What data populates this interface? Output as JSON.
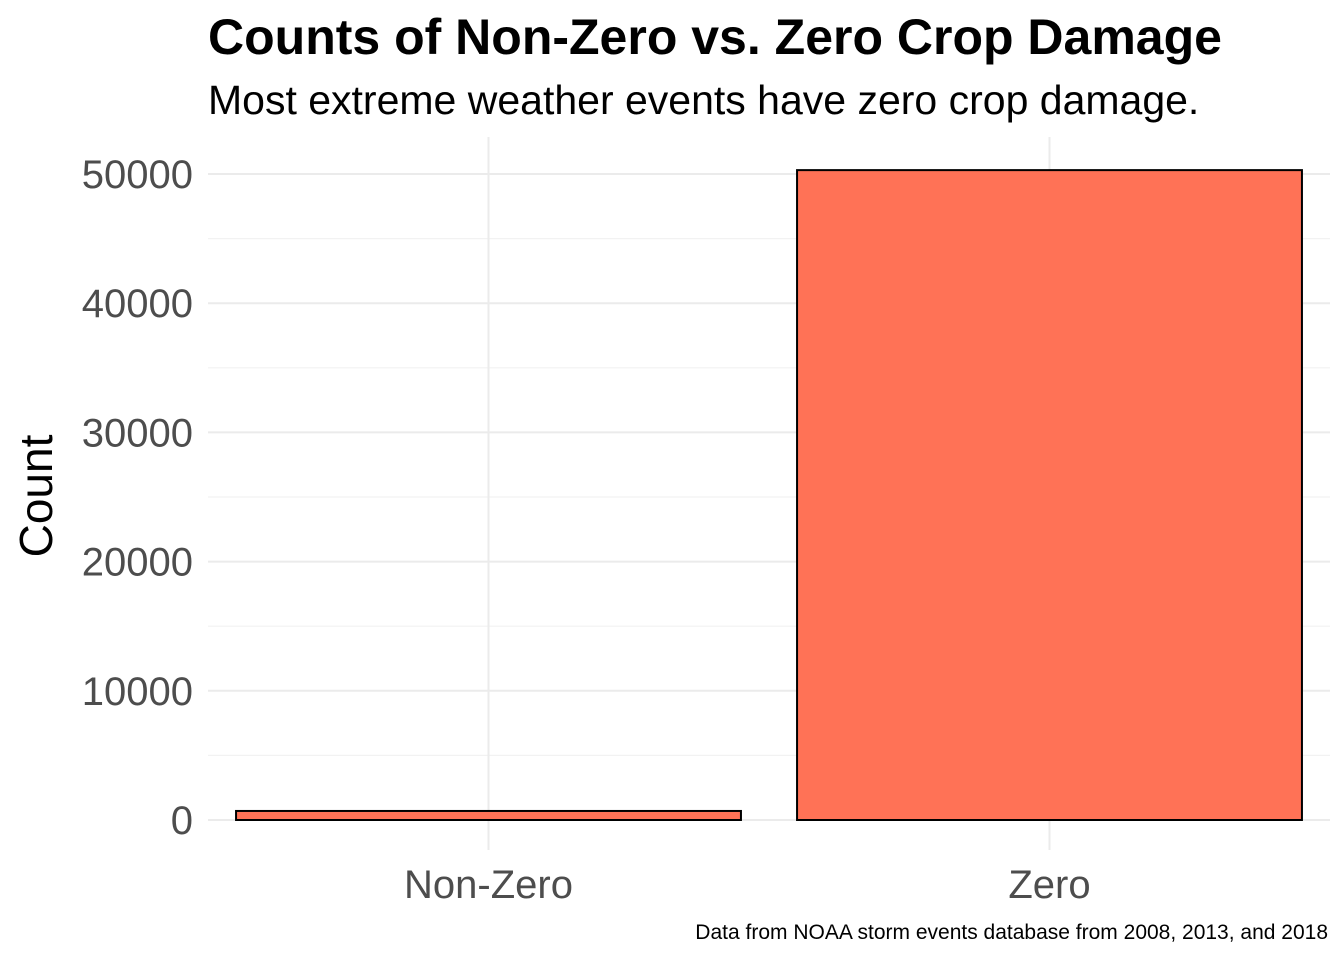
{
  "chart_data": {
    "type": "bar",
    "title": "Counts of Non-Zero vs. Zero Crop Damage",
    "subtitle": "Most extreme weather events have zero crop damage.",
    "caption": "Data from NOAA storm events database from 2008, 2013, and 2018",
    "xlabel": "",
    "ylabel": "Count",
    "categories": [
      "Non-Zero",
      "Zero"
    ],
    "values": [
      700,
      50300
    ],
    "ylim": [
      -2800,
      52800
    ],
    "yticks": [
      0,
      10000,
      20000,
      30000,
      40000,
      50000
    ],
    "ytick_labels": [
      "0",
      "10000",
      "20000",
      "30000",
      "40000",
      "50000"
    ],
    "grid": true,
    "legend": "none",
    "bar_color": "#FF7256",
    "bar_outline_color": "#000000",
    "grid_color": "#ebebeb"
  }
}
